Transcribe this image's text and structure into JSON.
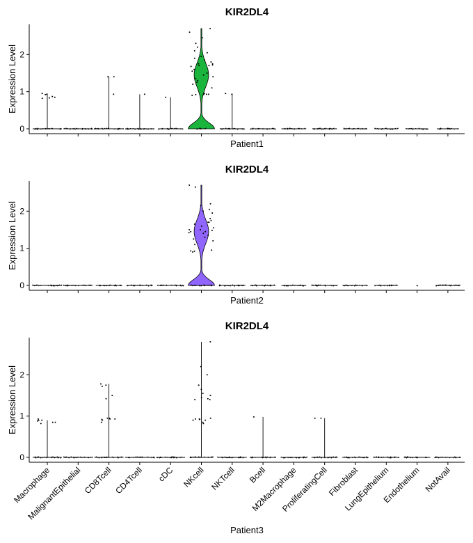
{
  "chart_data": {
    "type": "violin",
    "categories": [
      "Macrophage",
      "MalignantEpithelial",
      "CD8Tcell",
      "CD4Tcell",
      "cDC",
      "NKcell",
      "NKTcell",
      "Bcell",
      "M2Macrophage",
      "ProliferatingCell",
      "Fibroblast",
      "LungEpithelium",
      "Endothelium",
      "NotAvail"
    ],
    "ylabel": "Expression Level",
    "yticks": [
      0,
      1,
      2
    ],
    "panels": [
      {
        "title": "KIR2DL4",
        "xlabel": "Patient1",
        "ylim": [
          0,
          2.7
        ],
        "violin_color": "#1BB43C",
        "violin_category": "NKcell",
        "violin_max": 2.7,
        "max_values": [
          0.95,
          0.0,
          1.4,
          0.93,
          0.85,
          2.7,
          0.95,
          0.0,
          0.0,
          0.0,
          0.0,
          0.0,
          0.0,
          0.0
        ],
        "outliers": {
          "Macrophage": [
            0.82,
            0.85,
            0.93,
            0.95,
            0.83,
            0.92,
            0.87
          ],
          "CD8Tcell": [
            1.4,
            1.4,
            0.93
          ],
          "CD4Tcell": [
            0.93
          ],
          "cDC": [
            0.85
          ],
          "NKcell": [
            2.7,
            2.6,
            2.45,
            2.3,
            2.2,
            2.1,
            2.05,
            1.95,
            1.9,
            1.85,
            1.8,
            1.75,
            1.75,
            1.72,
            1.7,
            1.7,
            1.68,
            1.6,
            1.55,
            1.5,
            1.45,
            1.4,
            1.35,
            1.3,
            1.25,
            1.2,
            1.1,
            0.95,
            0.93,
            0.93,
            0.92,
            0.92,
            0.9
          ],
          "NKTcell": [
            0.95,
            0.93
          ]
        },
        "zero_extent": [
          1.0,
          1.0,
          1.0,
          1.0,
          0.85,
          0.35,
          0.85,
          0.85,
          0.85,
          0.85,
          0.8,
          0.8,
          0.75,
          0.75
        ]
      },
      {
        "title": "KIR2DL4",
        "xlabel": "Patient2",
        "ylim": [
          0,
          2.7
        ],
        "violin_color": "#9166FF",
        "violin_category": "NKcell",
        "violin_max": 2.7,
        "max_values": [
          0.0,
          0.0,
          0.0,
          0.0,
          0.0,
          2.7,
          0.0,
          0.0,
          0.0,
          0.0,
          0.0,
          0.0,
          0.0,
          0.0
        ],
        "outliers": {
          "NKcell": [
            2.7,
            2.65,
            2.2,
            2.15,
            2.05,
            2.0,
            1.95,
            1.8,
            1.75,
            1.7,
            1.7,
            1.65,
            1.6,
            1.55,
            1.5,
            1.5,
            1.48,
            1.45,
            1.45,
            1.42,
            1.4,
            1.35,
            1.3,
            1.25,
            1.2,
            1.1,
            0.95,
            0.93,
            0.92,
            0.9
          ]
        },
        "zero_extent": [
          1.0,
          1.0,
          0.9,
          0.9,
          0.9,
          0.8,
          0.9,
          0.85,
          0.85,
          0.9,
          0.85,
          0.8,
          0.05,
          0.85
        ]
      },
      {
        "title": "KIR2DL4",
        "xlabel": "Patient3",
        "ylim": [
          0,
          2.8
        ],
        "violin_color": null,
        "violin_category": null,
        "violin_max": 0,
        "max_values": [
          0.9,
          0.0,
          1.78,
          0.0,
          0.0,
          2.8,
          0.0,
          0.98,
          0.0,
          0.95,
          0.0,
          0.0,
          0.0,
          0.0
        ],
        "outliers": {
          "Macrophage": [
            0.82,
            0.85,
            0.9,
            0.93,
            0.9,
            0.85,
            0.88
          ],
          "CD8Tcell": [
            1.78,
            1.75,
            1.72,
            1.5,
            1.42,
            0.95,
            0.93,
            0.93,
            0.92,
            0.9,
            0.85,
            0.95
          ],
          "NKcell": [
            2.8,
            2.2,
            2.0,
            1.75,
            1.65,
            1.55,
            1.5,
            1.45,
            1.42,
            1.4,
            1.4,
            0.95,
            0.93,
            0.93,
            0.92,
            0.9,
            0.9,
            0.85,
            0.82
          ],
          "Bcell": [
            0.98
          ],
          "ProliferatingCell": [
            0.95,
            0.95
          ]
        },
        "zero_extent": [
          1.0,
          1.0,
          1.0,
          1.0,
          1.0,
          0.8,
          1.0,
          0.9,
          0.9,
          0.9,
          0.9,
          0.9,
          0.9,
          0.9
        ]
      }
    ]
  }
}
